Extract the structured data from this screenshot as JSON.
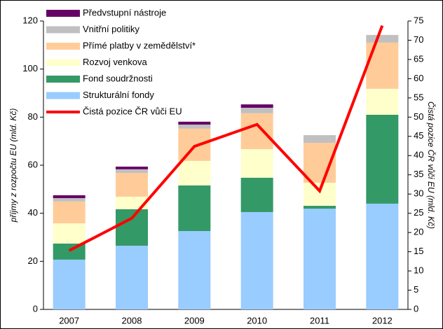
{
  "chart_data": {
    "type": "bar",
    "stacked": true,
    "categories": [
      "2007",
      "2008",
      "2009",
      "2010",
      "2011",
      "2012"
    ],
    "y_label": "příjmy z rozpočtu EU (mld. Kč)",
    "y2_label": "Čistá pozice ČR vůči EU (mld. Kč)",
    "ylim": [
      0,
      120
    ],
    "yticks": [
      0,
      20,
      40,
      60,
      80,
      100,
      120
    ],
    "y2lim": [
      0,
      75
    ],
    "y2ticks": [
      0,
      5,
      10,
      15,
      20,
      25,
      30,
      35,
      40,
      45,
      50,
      55,
      60,
      65,
      70,
      75
    ],
    "legend": "top-left",
    "series": [
      {
        "name": "Strukturální fondy",
        "color": "#99ccff",
        "values": [
          20.7,
          26.5,
          32.6,
          40.5,
          41.9,
          44.0
        ]
      },
      {
        "name": "Fond soudržnosti",
        "color": "#339966",
        "values": [
          6.7,
          15.2,
          19.0,
          14.3,
          1.2,
          37.0
        ]
      },
      {
        "name": "Rozvoj venkova",
        "color": "#ffffcc",
        "values": [
          8.4,
          5.2,
          10.2,
          11.9,
          9.6,
          10.8
        ]
      },
      {
        "name": "Přímé platby v zemědělství*",
        "color": "#ffcc99",
        "values": [
          9.1,
          9.9,
          13.4,
          14.9,
          16.6,
          19.2
        ]
      },
      {
        "name": "Vnitřní politiky",
        "color": "#c0c0c0",
        "values": [
          1.4,
          1.5,
          1.7,
          2.3,
          3.2,
          3.2
        ]
      },
      {
        "name": "Předvstupní nástroje",
        "color": "#660066",
        "values": [
          1.2,
          1.1,
          1.2,
          1.4,
          0,
          0
        ]
      },
      {
        "name": "Čistá pozice ČR vůči EU",
        "color": "#ff0000",
        "type": "line",
        "axis": "y2",
        "values": [
          15.3,
          23.7,
          42.4,
          48.1,
          30.8,
          73.8
        ]
      }
    ]
  }
}
